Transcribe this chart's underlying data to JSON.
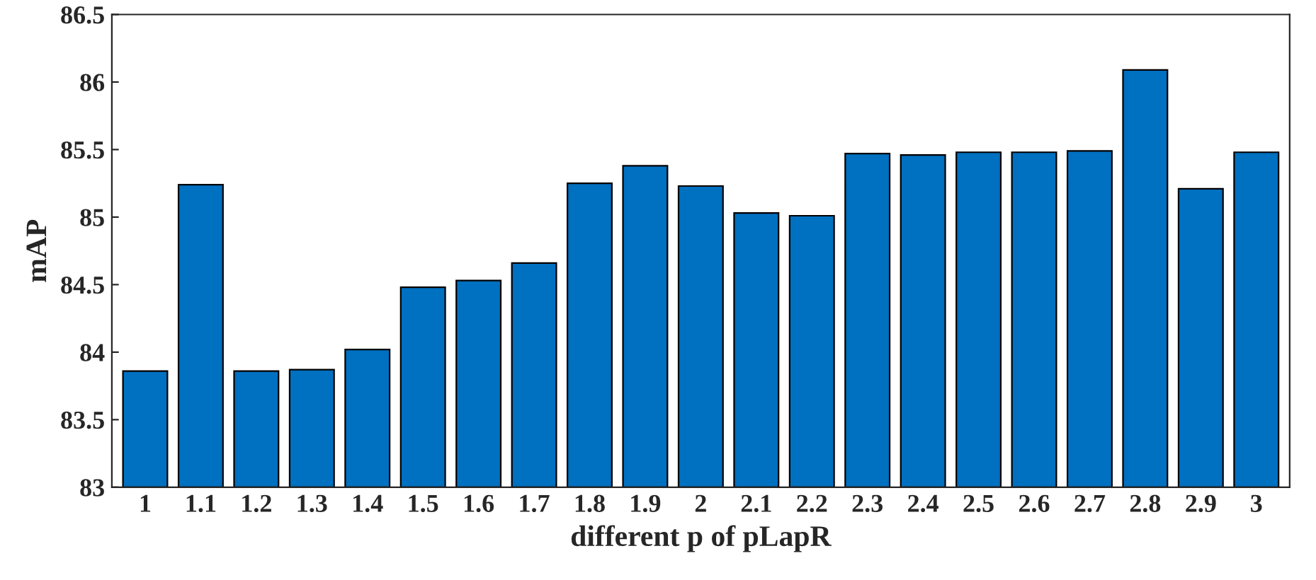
{
  "chart_data": {
    "type": "bar",
    "xlabel": "different p of pLapR",
    "ylabel": "mAP",
    "categories": [
      "1",
      "1.1",
      "1.2",
      "1.3",
      "1.4",
      "1.5",
      "1.6",
      "1.7",
      "1.8",
      "1.9",
      "2",
      "2.1",
      "2.2",
      "2.3",
      "2.4",
      "2.5",
      "2.6",
      "2.7",
      "2.8",
      "2.9",
      "3"
    ],
    "values": [
      83.86,
      85.24,
      83.86,
      83.87,
      84.02,
      84.48,
      84.53,
      84.66,
      85.25,
      85.38,
      85.23,
      85.03,
      85.01,
      85.47,
      85.46,
      85.48,
      85.48,
      85.49,
      86.09,
      85.21,
      85.48
    ],
    "color": "#0070c0",
    "ylim": [
      83,
      86.5
    ],
    "yticks": [
      83,
      83.5,
      84,
      84.5,
      85,
      85.5,
      86,
      86.5
    ],
    "grid": false
  }
}
